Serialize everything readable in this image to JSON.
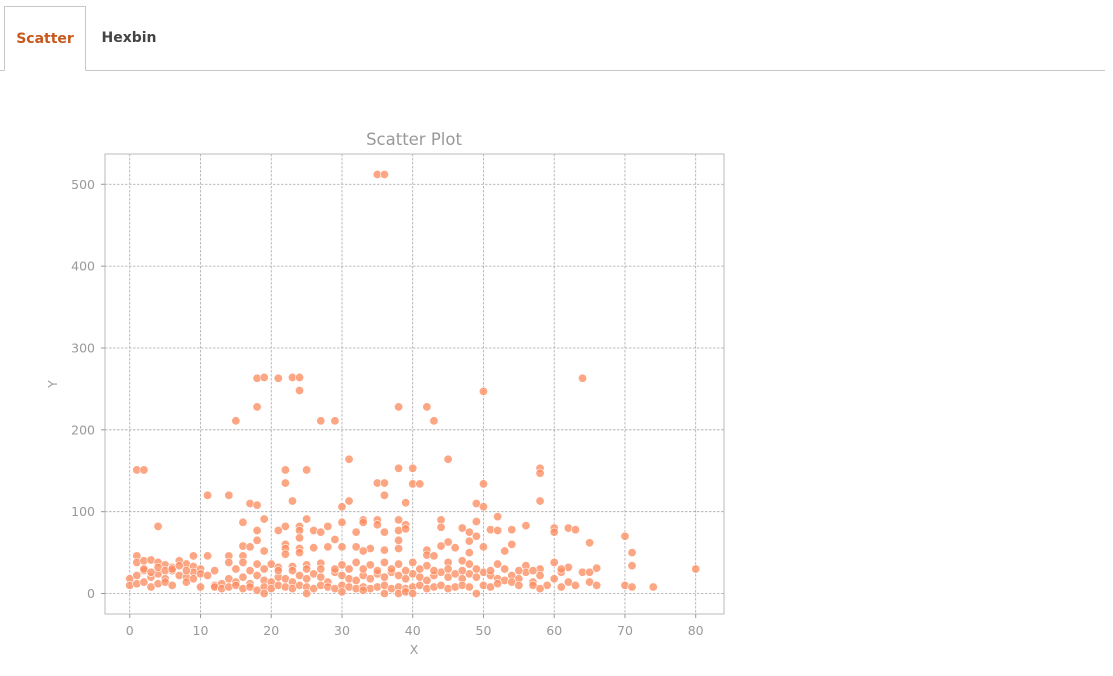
{
  "tabs": [
    {
      "label": "Scatter",
      "active": true
    },
    {
      "label": "Hexbin",
      "active": false
    }
  ],
  "colors": {
    "active_tab": "#c8581c",
    "point": "#fc8d62",
    "point_opacity": 0.78
  },
  "chart_data": {
    "type": "scatter",
    "title": "Scatter Plot",
    "xlabel": "X",
    "ylabel": "Y",
    "xlim": [
      -3.5,
      84
    ],
    "ylim": [
      -25,
      537
    ],
    "xticks": [
      0,
      10,
      20,
      30,
      40,
      50,
      60,
      70,
      80
    ],
    "yticks": [
      0,
      100,
      200,
      300,
      400,
      500
    ],
    "grid": true,
    "points": [
      [
        35,
        512
      ],
      [
        36,
        512
      ],
      [
        18,
        263
      ],
      [
        19,
        264
      ],
      [
        21,
        263
      ],
      [
        23,
        264
      ],
      [
        24,
        264
      ],
      [
        64,
        263
      ],
      [
        24,
        248
      ],
      [
        50,
        247
      ],
      [
        18,
        228
      ],
      [
        38,
        228
      ],
      [
        42,
        228
      ],
      [
        15,
        211
      ],
      [
        27,
        211
      ],
      [
        29,
        211
      ],
      [
        43,
        211
      ],
      [
        31,
        164
      ],
      [
        45,
        164
      ],
      [
        1,
        151
      ],
      [
        2,
        151
      ],
      [
        22,
        151
      ],
      [
        25,
        151
      ],
      [
        38,
        153
      ],
      [
        40,
        153
      ],
      [
        58,
        153
      ],
      [
        58,
        147
      ],
      [
        22,
        135
      ],
      [
        35,
        135
      ],
      [
        36,
        135
      ],
      [
        40,
        134
      ],
      [
        41,
        134
      ],
      [
        50,
        134
      ],
      [
        11,
        120
      ],
      [
        14,
        120
      ],
      [
        36,
        120
      ],
      [
        23,
        113
      ],
      [
        31,
        113
      ],
      [
        39,
        111
      ],
      [
        49,
        110
      ],
      [
        58,
        113
      ],
      [
        17,
        110
      ],
      [
        18,
        108
      ],
      [
        30,
        106
      ],
      [
        50,
        106
      ],
      [
        19,
        91
      ],
      [
        25,
        91
      ],
      [
        33,
        90
      ],
      [
        35,
        90
      ],
      [
        38,
        90
      ],
      [
        44,
        90
      ],
      [
        52,
        94
      ],
      [
        4,
        82
      ],
      [
        16,
        87
      ],
      [
        22,
        82
      ],
      [
        24,
        82
      ],
      [
        28,
        82
      ],
      [
        30,
        87
      ],
      [
        33,
        87
      ],
      [
        35,
        84
      ],
      [
        39,
        84
      ],
      [
        44,
        81
      ],
      [
        47,
        80
      ],
      [
        49,
        88
      ],
      [
        51,
        78
      ],
      [
        54,
        78
      ],
      [
        56,
        83
      ],
      [
        60,
        80
      ],
      [
        62,
        80
      ],
      [
        63,
        78
      ],
      [
        18,
        77
      ],
      [
        21,
        77
      ],
      [
        24,
        77
      ],
      [
        26,
        77
      ],
      [
        27,
        75
      ],
      [
        32,
        75
      ],
      [
        36,
        75
      ],
      [
        38,
        77
      ],
      [
        39,
        79
      ],
      [
        48,
        75
      ],
      [
        52,
        77
      ],
      [
        60,
        75
      ],
      [
        70,
        70
      ],
      [
        49,
        70
      ],
      [
        24,
        68
      ],
      [
        29,
        66
      ],
      [
        18,
        65
      ],
      [
        38,
        65
      ],
      [
        45,
        63
      ],
      [
        48,
        64
      ],
      [
        65,
        62
      ],
      [
        22,
        60
      ],
      [
        16,
        58
      ],
      [
        17,
        57
      ],
      [
        22,
        55
      ],
      [
        24,
        55
      ],
      [
        26,
        56
      ],
      [
        28,
        57
      ],
      [
        30,
        57
      ],
      [
        32,
        57
      ],
      [
        34,
        55
      ],
      [
        38,
        55
      ],
      [
        42,
        53
      ],
      [
        46,
        56
      ],
      [
        50,
        57
      ],
      [
        53,
        52
      ],
      [
        54,
        60
      ],
      [
        33,
        52
      ],
      [
        36,
        53
      ],
      [
        44,
        58
      ],
      [
        1,
        46
      ],
      [
        9,
        46
      ],
      [
        11,
        46
      ],
      [
        14,
        46
      ],
      [
        16,
        46
      ],
      [
        19,
        52
      ],
      [
        22,
        48
      ],
      [
        24,
        50
      ],
      [
        42,
        47
      ],
      [
        43,
        46
      ],
      [
        48,
        50
      ],
      [
        71,
        50
      ],
      [
        1,
        38
      ],
      [
        2,
        40
      ],
      [
        3,
        41
      ],
      [
        4,
        38
      ],
      [
        5,
        35
      ],
      [
        6,
        32
      ],
      [
        7,
        40
      ],
      [
        8,
        36
      ],
      [
        9,
        33
      ],
      [
        10,
        30
      ],
      [
        14,
        38
      ],
      [
        16,
        38
      ],
      [
        18,
        36
      ],
      [
        20,
        36
      ],
      [
        21,
        32
      ],
      [
        23,
        33
      ],
      [
        25,
        35
      ],
      [
        27,
        37
      ],
      [
        30,
        35
      ],
      [
        32,
        38
      ],
      [
        34,
        35
      ],
      [
        36,
        38
      ],
      [
        38,
        36
      ],
      [
        40,
        38
      ],
      [
        42,
        34
      ],
      [
        45,
        38
      ],
      [
        47,
        40
      ],
      [
        48,
        36
      ],
      [
        52,
        36
      ],
      [
        56,
        34
      ],
      [
        58,
        30
      ],
      [
        60,
        38
      ],
      [
        62,
        32
      ],
      [
        64,
        26
      ],
      [
        65,
        26
      ],
      [
        71,
        34
      ],
      [
        80,
        30
      ],
      [
        66,
        31
      ],
      [
        0,
        18
      ],
      [
        1,
        22
      ],
      [
        2,
        28
      ],
      [
        3,
        20
      ],
      [
        4,
        24
      ],
      [
        5,
        18
      ],
      [
        6,
        28
      ],
      [
        7,
        22
      ],
      [
        8,
        20
      ],
      [
        9,
        26
      ],
      [
        10,
        24
      ],
      [
        11,
        22
      ],
      [
        12,
        10
      ],
      [
        13,
        12
      ],
      [
        14,
        18
      ],
      [
        15,
        14
      ],
      [
        16,
        20
      ],
      [
        17,
        12
      ],
      [
        18,
        22
      ],
      [
        19,
        16
      ],
      [
        20,
        14
      ],
      [
        21,
        20
      ],
      [
        22,
        18
      ],
      [
        23,
        14
      ],
      [
        24,
        22
      ],
      [
        25,
        18
      ],
      [
        26,
        24
      ],
      [
        27,
        20
      ],
      [
        28,
        14
      ],
      [
        29,
        26
      ],
      [
        30,
        22
      ],
      [
        31,
        18
      ],
      [
        32,
        16
      ],
      [
        33,
        22
      ],
      [
        34,
        18
      ],
      [
        35,
        24
      ],
      [
        36,
        20
      ],
      [
        37,
        26
      ],
      [
        38,
        22
      ],
      [
        39,
        18
      ],
      [
        40,
        24
      ],
      [
        41,
        20
      ],
      [
        42,
        16
      ],
      [
        43,
        22
      ],
      [
        44,
        26
      ],
      [
        45,
        20
      ],
      [
        46,
        24
      ],
      [
        47,
        18
      ],
      [
        48,
        24
      ],
      [
        49,
        20
      ],
      [
        50,
        26
      ],
      [
        51,
        22
      ],
      [
        52,
        18
      ],
      [
        53,
        16
      ],
      [
        54,
        22
      ],
      [
        55,
        18
      ],
      [
        56,
        26
      ],
      [
        57,
        14
      ],
      [
        58,
        22
      ],
      [
        59,
        10
      ],
      [
        60,
        18
      ],
      [
        61,
        26
      ],
      [
        62,
        14
      ],
      [
        63,
        10
      ],
      [
        65,
        14
      ],
      [
        66,
        10
      ],
      [
        70,
        10
      ],
      [
        71,
        8
      ],
      [
        74,
        8
      ],
      [
        0,
        10
      ],
      [
        1,
        12
      ],
      [
        2,
        14
      ],
      [
        3,
        8
      ],
      [
        4,
        12
      ],
      [
        5,
        14
      ],
      [
        6,
        10
      ],
      [
        8,
        14
      ],
      [
        9,
        18
      ],
      [
        10,
        8
      ],
      [
        12,
        8
      ],
      [
        13,
        6
      ],
      [
        14,
        8
      ],
      [
        15,
        10
      ],
      [
        16,
        6
      ],
      [
        17,
        8
      ],
      [
        18,
        4
      ],
      [
        19,
        8
      ],
      [
        20,
        6
      ],
      [
        21,
        10
      ],
      [
        22,
        8
      ],
      [
        23,
        6
      ],
      [
        24,
        10
      ],
      [
        25,
        8
      ],
      [
        26,
        6
      ],
      [
        27,
        10
      ],
      [
        28,
        8
      ],
      [
        29,
        6
      ],
      [
        30,
        10
      ],
      [
        31,
        8
      ],
      [
        32,
        6
      ],
      [
        33,
        8
      ],
      [
        34,
        6
      ],
      [
        35,
        8
      ],
      [
        36,
        10
      ],
      [
        37,
        6
      ],
      [
        38,
        8
      ],
      [
        39,
        6
      ],
      [
        40,
        8
      ],
      [
        41,
        10
      ],
      [
        42,
        6
      ],
      [
        43,
        8
      ],
      [
        44,
        10
      ],
      [
        45,
        6
      ],
      [
        46,
        8
      ],
      [
        47,
        10
      ],
      [
        48,
        8
      ],
      [
        50,
        10
      ],
      [
        51,
        8
      ],
      [
        52,
        12
      ],
      [
        54,
        14
      ],
      [
        55,
        10
      ],
      [
        57,
        10
      ],
      [
        58,
        6
      ],
      [
        61,
        8
      ],
      [
        19,
        0
      ],
      [
        25,
        0
      ],
      [
        36,
        0
      ],
      [
        38,
        0
      ],
      [
        39,
        2
      ],
      [
        40,
        0
      ],
      [
        49,
        0
      ],
      [
        30,
        2
      ],
      [
        33,
        4
      ],
      [
        2,
        30
      ],
      [
        3,
        26
      ],
      [
        4,
        32
      ],
      [
        5,
        28
      ],
      [
        6,
        30
      ],
      [
        7,
        34
      ],
      [
        8,
        28
      ],
      [
        12,
        28
      ],
      [
        15,
        30
      ],
      [
        17,
        28
      ],
      [
        19,
        30
      ],
      [
        21,
        28
      ],
      [
        23,
        28
      ],
      [
        25,
        30
      ],
      [
        27,
        30
      ],
      [
        29,
        30
      ],
      [
        31,
        30
      ],
      [
        33,
        30
      ],
      [
        35,
        28
      ],
      [
        37,
        30
      ],
      [
        39,
        28
      ],
      [
        41,
        30
      ],
      [
        43,
        28
      ],
      [
        45,
        30
      ],
      [
        47,
        28
      ],
      [
        49,
        30
      ],
      [
        51,
        28
      ],
      [
        53,
        30
      ],
      [
        55,
        28
      ],
      [
        57,
        28
      ],
      [
        61,
        30
      ]
    ]
  }
}
